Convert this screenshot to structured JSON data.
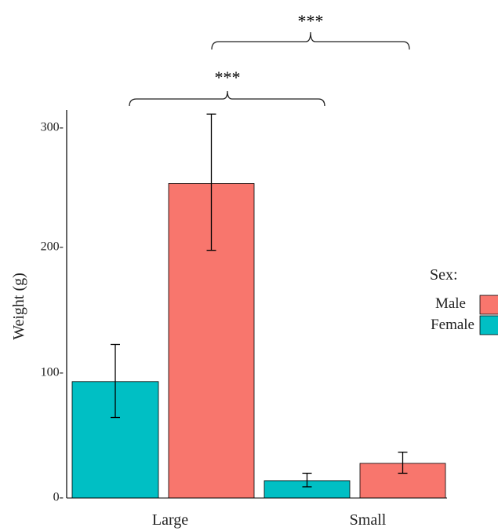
{
  "chart_data": {
    "type": "bar",
    "categories": [
      "Large",
      "Small"
    ],
    "ylabel": "Weight (g)",
    "xlabel": "",
    "ylim": [
      0,
      300
    ],
    "yticks": [
      0,
      100,
      200,
      300
    ],
    "ytick_labels": [
      "0-",
      "100-",
      "200-",
      "300-"
    ],
    "legend": {
      "title": "Sex:",
      "placement": "right"
    },
    "series": [
      {
        "name": "Female",
        "color": "#00BFC4",
        "values": [
          94,
          14
        ],
        "err_low": [
          65,
          9
        ],
        "err_high": [
          124,
          20
        ]
      },
      {
        "name": "Male",
        "color": "#F8766D",
        "values": [
          254,
          28
        ],
        "err_low": [
          200,
          20
        ],
        "err_high": [
          310,
          37
        ]
      }
    ],
    "significance": [
      {
        "label": "***",
        "between": [
          "Large",
          "Small"
        ],
        "series": "Female"
      },
      {
        "label": "***",
        "between": [
          "Large",
          "Small"
        ],
        "series": "Male"
      }
    ]
  }
}
